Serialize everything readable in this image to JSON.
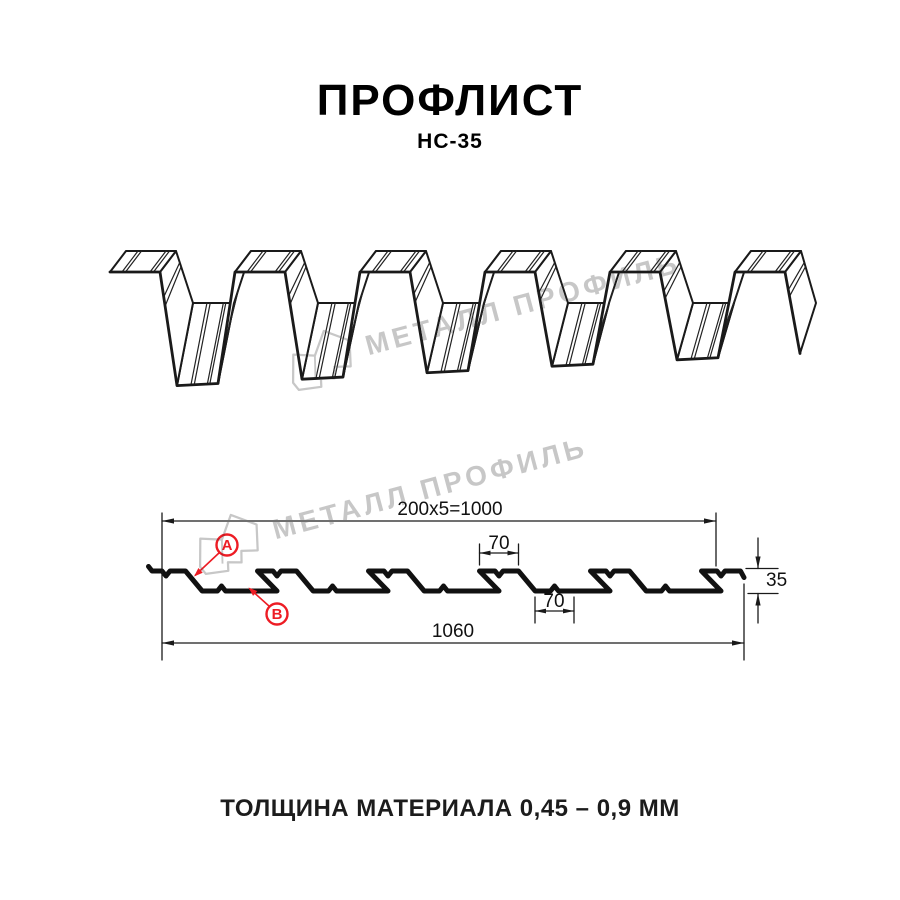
{
  "header": {
    "title": "ПРОФЛИСТ",
    "model": "НС-35"
  },
  "watermark": {
    "text": "МЕТАЛЛ ПРОФИЛЬ"
  },
  "diagram": {
    "dim_top": "200x5=1000",
    "dim_bottom": "1060",
    "dim_crest_width": "70",
    "dim_valley_width": "70",
    "dim_height": "35",
    "callout_a": "A",
    "callout_b": "B"
  },
  "caption": {
    "thickness": "ТОЛЩИНА МАТЕРИАЛА 0,45 – 0,9 ММ"
  },
  "colors": {
    "accent_red": "#ed1c24",
    "line": "#1a1a1a",
    "watermark": "#c7c7c7"
  }
}
